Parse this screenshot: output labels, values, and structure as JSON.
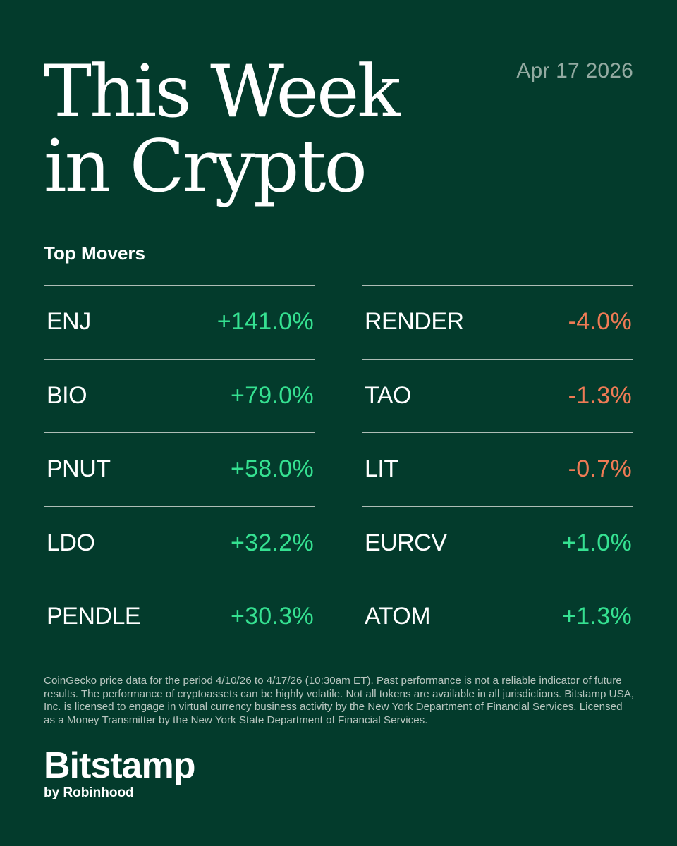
{
  "header": {
    "date": "Apr 17 2026",
    "title_line1": "This Week",
    "title_line2": "in Crypto"
  },
  "section_label": "Top Movers",
  "colors": {
    "background": "#033b2c",
    "gain": "#35e191",
    "loss": "#ef7b55"
  },
  "left_movers": [
    {
      "symbol": "ENJ",
      "change": "+141.0%",
      "direction": "up"
    },
    {
      "symbol": "BIO",
      "change": "+79.0%",
      "direction": "up"
    },
    {
      "symbol": "PNUT",
      "change": "+58.0%",
      "direction": "up"
    },
    {
      "symbol": "LDO",
      "change": "+32.2%",
      "direction": "up"
    },
    {
      "symbol": "PENDLE",
      "change": "+30.3%",
      "direction": "up"
    }
  ],
  "right_movers": [
    {
      "symbol": "RENDER",
      "change": "-4.0%",
      "direction": "down"
    },
    {
      "symbol": "TAO",
      "change": "-1.3%",
      "direction": "down"
    },
    {
      "symbol": "LIT",
      "change": "-0.7%",
      "direction": "down"
    },
    {
      "symbol": "EURCV",
      "change": "+1.0%",
      "direction": "up"
    },
    {
      "symbol": "ATOM",
      "change": "+1.3%",
      "direction": "up"
    }
  ],
  "disclaimer": "CoinGecko price data for the period 4/10/26 to 4/17/26 (10:30am ET). Past performance is not a reliable indicator of future results. The performance of cryptoassets can be highly volatile. Not all tokens are available in all jurisdictions. Bitstamp USA, Inc. is licensed to engage in virtual currency business activity by the New York Department of Financial Services. Licensed as a Money Transmitter by the New York State Department of Financial Services.",
  "brand": {
    "name": "Bitstamp",
    "tagline": "by Robinhood"
  }
}
